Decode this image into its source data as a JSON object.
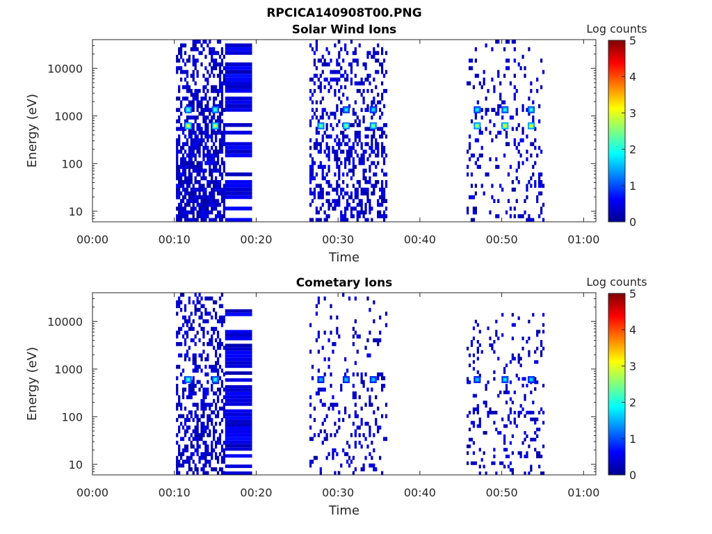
{
  "figure_title": "RPCICA140908T00.PNG",
  "colorscale": [
    "#00008f",
    "#0000ff",
    "#007fff",
    "#00ffff",
    "#7fff7f",
    "#ffff00",
    "#ff7f00",
    "#ff0000",
    "#7f0000"
  ],
  "chart_data": [
    {
      "type": "heatmap",
      "title": "Solar Wind Ions",
      "xlabel": "Time",
      "ylabel": "Energy (eV)",
      "colorbar_label": "Log counts",
      "x_ticks": [
        "00:00",
        "00:10",
        "00:20",
        "00:30",
        "00:40",
        "00:50",
        "01:00"
      ],
      "x_range_min": [
        0,
        61.5
      ],
      "y_ticks": [
        "10",
        "100",
        "1000",
        "10000"
      ],
      "y_scale": "log",
      "y_range_eV": [
        6,
        40000
      ],
      "c_ticks": [
        "0",
        "1",
        "2",
        "3",
        "4",
        "5"
      ],
      "c_range": [
        0,
        5
      ],
      "blocks": [
        {
          "t_start_min": 10.2,
          "t_end_min": 16.2,
          "bands": [
            {
              "e_lo": 6,
              "e_hi": 40000,
              "fill": "dense"
            }
          ],
          "hotspots": [
            {
              "t": 11.7,
              "e": 620,
              "level": 3.1
            },
            {
              "t": 15.0,
              "e": 620,
              "level": 2.9
            },
            {
              "t": 11.7,
              "e": 1350,
              "level": 2.3
            },
            {
              "t": 15.0,
              "e": 1350,
              "level": 2.2
            }
          ]
        },
        {
          "t_start_min": 16.2,
          "t_end_min": 19.5,
          "bands": [
            {
              "e_lo": 6,
              "e_hi": 40000,
              "fill": "stripes"
            }
          ],
          "hotspots": []
        },
        {
          "t_start_min": 26.5,
          "t_end_min": 35.8,
          "bands": [
            {
              "e_lo": 6,
              "e_hi": 40000,
              "fill": "sparse"
            }
          ],
          "hotspots": [
            {
              "t": 27.9,
              "e": 620,
              "level": 2.4
            },
            {
              "t": 31.0,
              "e": 620,
              "level": 2.6
            },
            {
              "t": 34.3,
              "e": 620,
              "level": 2.5
            },
            {
              "t": 31.0,
              "e": 1350,
              "level": 1.8
            },
            {
              "t": 34.3,
              "e": 1350,
              "level": 1.7
            }
          ]
        },
        {
          "t_start_min": 45.7,
          "t_end_min": 55.0,
          "bands": [
            {
              "e_lo": 6,
              "e_hi": 40000,
              "fill": "very-sparse"
            }
          ],
          "hotspots": [
            {
              "t": 47.0,
              "e": 620,
              "level": 2.8
            },
            {
              "t": 50.4,
              "e": 620,
              "level": 3.2
            },
            {
              "t": 53.6,
              "e": 620,
              "level": 3.0
            },
            {
              "t": 47.0,
              "e": 1350,
              "level": 1.9
            },
            {
              "t": 50.4,
              "e": 1350,
              "level": 2.0
            },
            {
              "t": 53.6,
              "e": 1350,
              "level": 2.1
            }
          ]
        }
      ]
    },
    {
      "type": "heatmap",
      "title": "Cometary Ions",
      "xlabel": "Time",
      "ylabel": "Energy (eV)",
      "colorbar_label": "Log counts",
      "x_ticks": [
        "00:00",
        "00:10",
        "00:20",
        "00:30",
        "00:40",
        "00:50",
        "01:00"
      ],
      "x_range_min": [
        0,
        61.5
      ],
      "y_ticks": [
        "10",
        "100",
        "1000",
        "10000"
      ],
      "y_scale": "log",
      "y_range_eV": [
        6,
        40000
      ],
      "c_ticks": [
        "0",
        "1",
        "2",
        "3",
        "4",
        "5"
      ],
      "c_range": [
        0,
        5
      ],
      "blocks": [
        {
          "t_start_min": 10.2,
          "t_end_min": 16.2,
          "bands": [
            {
              "e_lo": 6,
              "e_hi": 40000,
              "fill": "medium"
            }
          ],
          "hotspots": [
            {
              "t": 11.7,
              "e": 600,
              "level": 2.2
            },
            {
              "t": 15.0,
              "e": 600,
              "level": 2.0
            }
          ]
        },
        {
          "t_start_min": 16.2,
          "t_end_min": 19.5,
          "bands": [
            {
              "e_lo": 6,
              "e_hi": 18000,
              "fill": "stripes"
            }
          ],
          "hotspots": []
        },
        {
          "t_start_min": 26.5,
          "t_end_min": 35.8,
          "bands": [
            {
              "e_lo": 6,
              "e_hi": 40000,
              "fill": "very-sparse"
            }
          ],
          "hotspots": [
            {
              "t": 27.9,
              "e": 600,
              "level": 1.5
            },
            {
              "t": 31.0,
              "e": 600,
              "level": 1.6
            },
            {
              "t": 34.3,
              "e": 600,
              "level": 1.6
            }
          ]
        },
        {
          "t_start_min": 45.7,
          "t_end_min": 55.0,
          "bands": [
            {
              "e_lo": 6,
              "e_hi": 15000,
              "fill": "very-sparse"
            }
          ],
          "hotspots": [
            {
              "t": 47.0,
              "e": 600,
              "level": 1.6
            },
            {
              "t": 50.4,
              "e": 600,
              "level": 1.8
            },
            {
              "t": 53.6,
              "e": 600,
              "level": 1.7
            }
          ]
        }
      ]
    }
  ]
}
